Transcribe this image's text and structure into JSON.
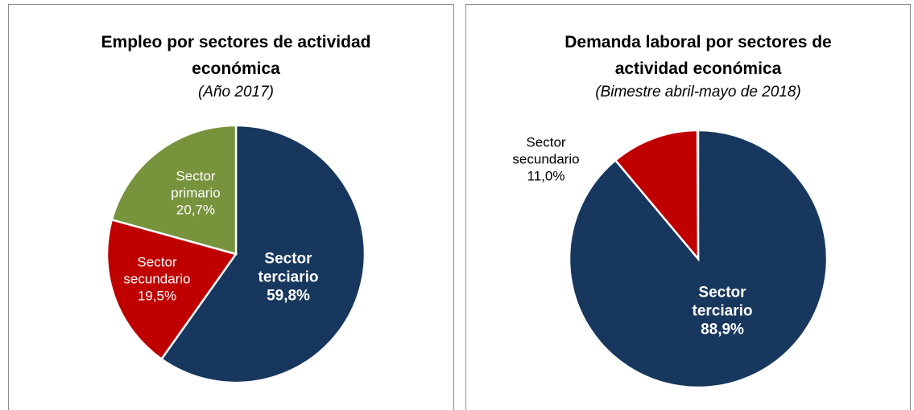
{
  "chart_data": [
    {
      "type": "pie",
      "title": "Empleo por sectores de actividad económica",
      "subtitle": "(Año 2017)",
      "categories": [
        "Sector terciario",
        "Sector secundario",
        "Sector primario"
      ],
      "values": [
        59.8,
        19.5,
        20.7
      ],
      "value_labels": [
        "59,8%",
        "19,5%",
        "20,7%"
      ],
      "colors": [
        "#17375e",
        "#c00000",
        "#77933c"
      ]
    },
    {
      "type": "pie",
      "title": "Demanda laboral por sectores de actividad económica",
      "subtitle": "(Bimestre abril-mayo de 2018)",
      "categories": [
        "Sector terciario",
        "Sector secundario"
      ],
      "values": [
        88.9,
        11.0
      ],
      "value_labels": [
        "88,9%",
        "11,0%"
      ],
      "colors": [
        "#17375e",
        "#c00000"
      ]
    }
  ]
}
